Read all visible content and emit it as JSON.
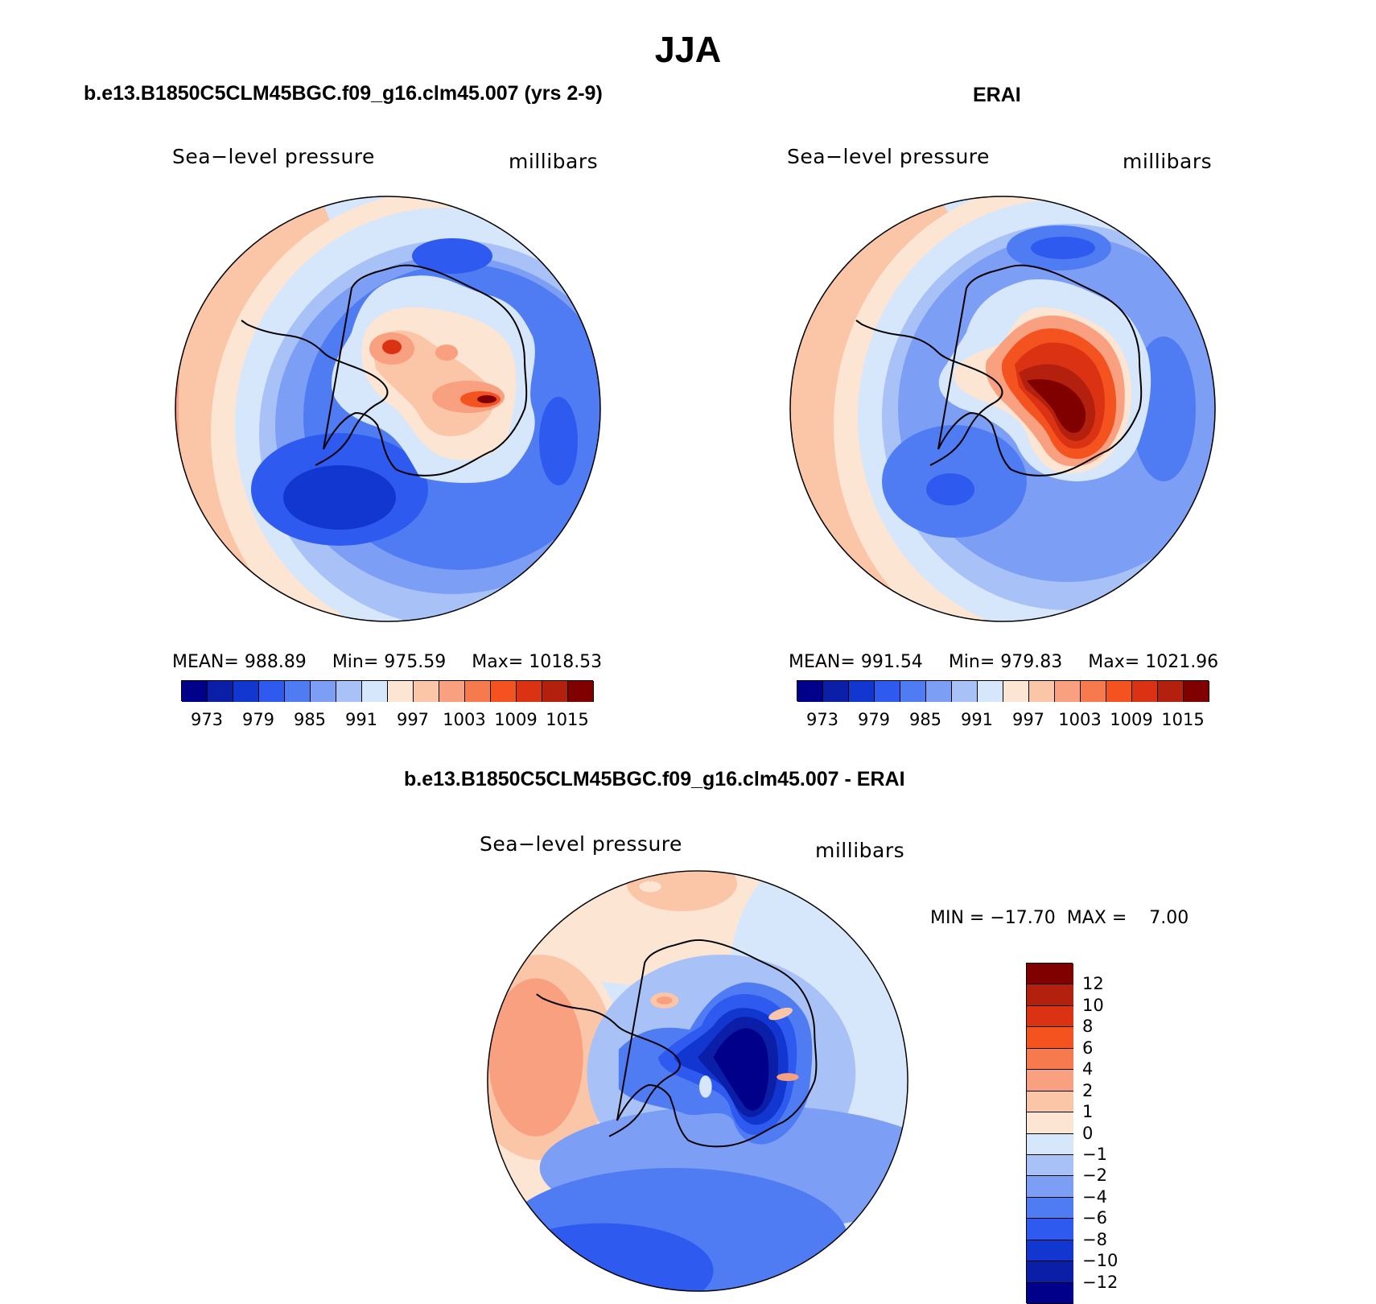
{
  "figure": {
    "main_title": "JJA",
    "panels": [
      {
        "title": "b.e13.B1850C5CLM45BGC.f09_g16.clm45.007 (yrs 2-9)",
        "variable": "Sea−level pressure",
        "units": "millibars",
        "stats": {
          "mean_label": "MEAN=",
          "mean": "988.89",
          "min_label": "Min=",
          "min": "975.59",
          "max_label": "Max=",
          "max": "1018.53"
        }
      },
      {
        "title": "ERAI",
        "variable": "Sea−level pressure",
        "units": "millibars",
        "stats": {
          "mean_label": "MEAN=",
          "mean": "991.54",
          "min_label": "Min=",
          "min": "979.83",
          "max_label": "Max=",
          "max": "1021.96"
        }
      }
    ],
    "diff_panel": {
      "title": "b.e13.B1850C5CLM45BGC.f09_g16.clm45.007 - ERAI",
      "variable": "Sea−level pressure",
      "units": "millibars",
      "minmax": "MIN = −17.70  MAX =    7.00"
    },
    "colorbar_abs": {
      "colors": [
        "#00008b",
        "#0a1ea8",
        "#1236d0",
        "#2e5af0",
        "#4f7cf2",
        "#7c9ef4",
        "#a8c2f7",
        "#d6e6fb",
        "#fde5d3",
        "#fbc6a8",
        "#f8a080",
        "#f77a4e",
        "#f4521e",
        "#dc3214",
        "#b4200e",
        "#800000"
      ],
      "labels": [
        "973",
        "979",
        "985",
        "991",
        "997",
        "1003",
        "1009",
        "1015"
      ]
    },
    "colorbar_diff": {
      "colors": [
        "#800000",
        "#b4200e",
        "#dc3214",
        "#f4521e",
        "#f77a4e",
        "#f8a080",
        "#fbc6a8",
        "#fde5d3",
        "#d6e6fb",
        "#a8c2f7",
        "#7c9ef4",
        "#4f7cf2",
        "#2e5af0",
        "#1236d0",
        "#0a1ea8",
        "#00008b"
      ],
      "labels": [
        "12",
        "10",
        "8",
        "6",
        "4",
        "2",
        "1",
        "0",
        "−1",
        "−2",
        "−4",
        "−6",
        "−8",
        "−10",
        "−12"
      ]
    }
  }
}
